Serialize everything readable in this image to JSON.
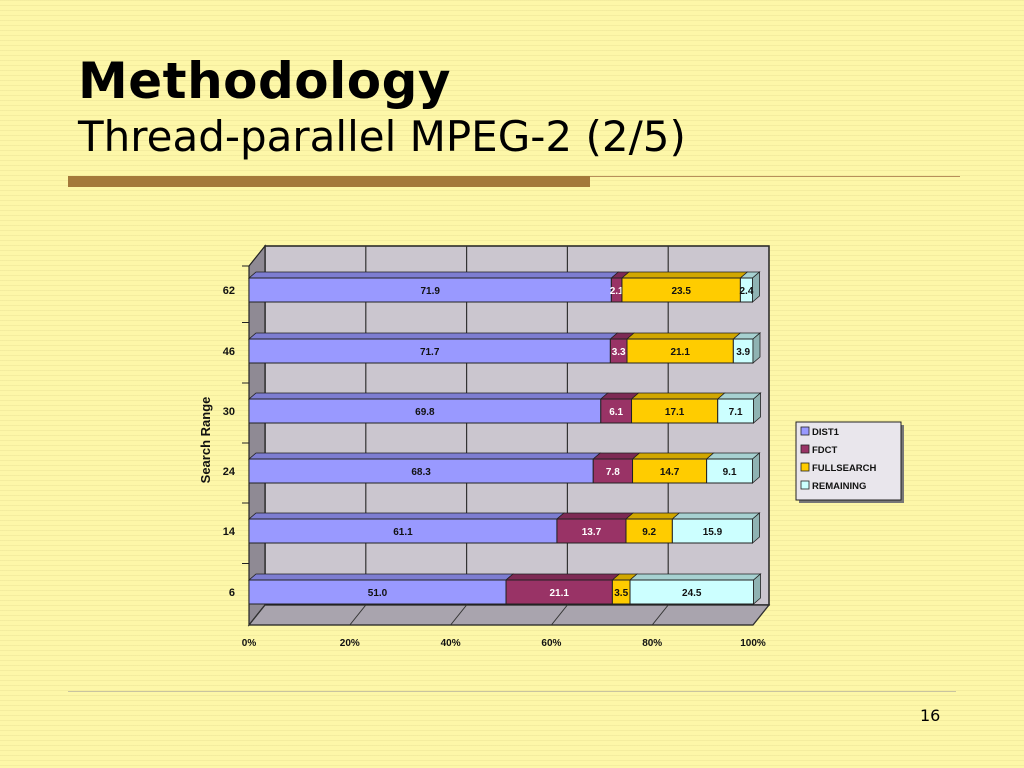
{
  "slide": {
    "title": "Methodology",
    "subtitle": "Thread-parallel MPEG-2 (2/5)",
    "page_number": "16"
  },
  "colors": {
    "background": "#fdf7a8",
    "accent_rule": "#a4793a",
    "plot_wall": "#cbc6cf",
    "dist1": "#9999ff",
    "fdct": "#993366",
    "fullsearch": "#ffcc00",
    "remaining": "#ccffff"
  },
  "chart_data": {
    "type": "bar",
    "orientation": "horizontal",
    "stacked": true,
    "percent_stacked": true,
    "ylabel": "Search Range",
    "categories": [
      "62",
      "46",
      "30",
      "24",
      "14",
      "6"
    ],
    "x_ticks": [
      "0%",
      "20%",
      "40%",
      "60%",
      "80%",
      "100%"
    ],
    "xlim": [
      0,
      100
    ],
    "grid": true,
    "legend_position": "right",
    "series": [
      {
        "name": "DIST1",
        "values": [
          71.9,
          71.7,
          69.8,
          68.3,
          61.1,
          51.0
        ],
        "labels": [
          "71.9",
          "71.7",
          "69.8",
          "68.3",
          "61.1",
          "51.0"
        ],
        "color": "#9999ff"
      },
      {
        "name": "FDCT",
        "values": [
          2.1,
          3.3,
          6.1,
          7.8,
          13.7,
          21.1
        ],
        "labels": [
          "2.1",
          "3.3",
          "6.1",
          "7.8",
          "13.7",
          "21.1"
        ],
        "color": "#993366"
      },
      {
        "name": "FULLSEARCH",
        "values": [
          23.5,
          21.1,
          17.1,
          14.7,
          9.2,
          3.5
        ],
        "labels": [
          "23.5",
          "21.1",
          "17.1",
          "14.7",
          "9.2",
          "3.5"
        ],
        "color": "#ffcc00"
      },
      {
        "name": "REMAINING",
        "values": [
          2.4,
          3.9,
          7.1,
          9.1,
          15.9,
          24.5
        ],
        "labels": [
          "2.4",
          "3.9",
          "7.1",
          "9.1",
          "15.9",
          "24.5"
        ],
        "color": "#ccffff"
      }
    ]
  }
}
